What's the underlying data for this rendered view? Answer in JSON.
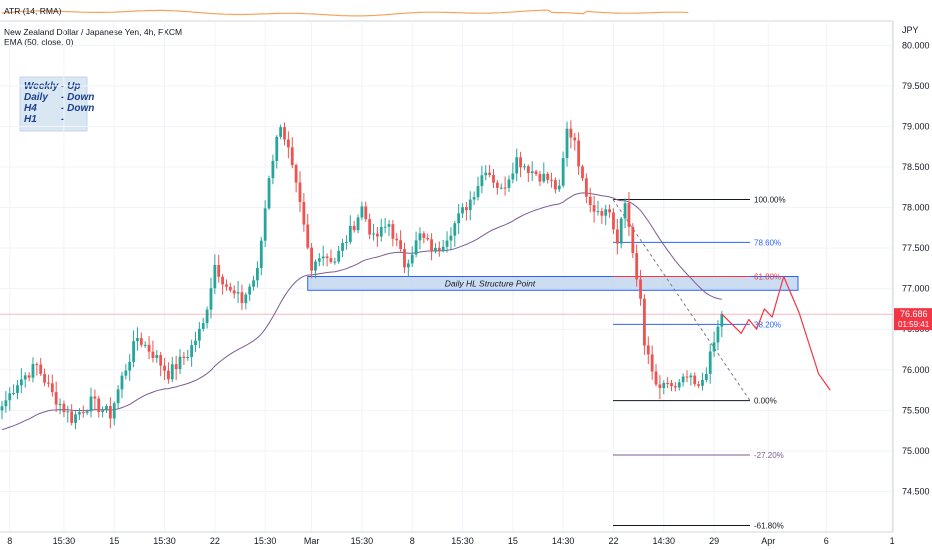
{
  "indicator_pane": {
    "label": "ATR (14, RMA)"
  },
  "legend": {
    "symbol_line": "New Zealand Dollar / Japanese Yen, 4h, FXCM",
    "ema_line": "EMA (50, close, 0)"
  },
  "currency_tag": "JPY",
  "bias_box": {
    "rows": [
      {
        "tf": "Weekly",
        "dir": "- Up"
      },
      {
        "tf": "Daily",
        "dir": "- Down"
      },
      {
        "tf": "H4",
        "dir": "- Down"
      },
      {
        "tf": "H1",
        "dir": "-"
      }
    ]
  },
  "zone": {
    "label": "Daily HL Structure Point",
    "color": "#2962ff"
  },
  "price_tag": {
    "price": "76.686",
    "countdown": "01:59:41",
    "color": "#f23645"
  },
  "colors": {
    "up": "#26a69a",
    "down": "#ef5350",
    "ema": "#7b5c96",
    "atr": "#f7a35c",
    "projection": "#f23645"
  },
  "chart_data": {
    "type": "candlestick",
    "instrument": "New Zealand Dollar / Japanese Yen",
    "timeframe": "4h",
    "ylim": [
      74.0,
      80.3
    ],
    "y_ticks": [
      "80.000",
      "79.500",
      "79.000",
      "78.500",
      "78.000",
      "77.500",
      "77.000",
      "76.500",
      "76.000",
      "75.500",
      "75.000",
      "74.500"
    ],
    "y_tick_values": [
      80.0,
      79.5,
      79.0,
      78.5,
      78.0,
      77.5,
      77.0,
      76.5,
      76.0,
      75.5,
      75.0,
      74.5
    ],
    "x_ticks": [
      {
        "label": "8",
        "bar": 2
      },
      {
        "label": "15:30",
        "bar": 16
      },
      {
        "label": "15",
        "bar": 29
      },
      {
        "label": "15:30",
        "bar": 42
      },
      {
        "label": "22",
        "bar": 55
      },
      {
        "label": "15:30",
        "bar": 68
      },
      {
        "label": "Mar",
        "bar": 80
      },
      {
        "label": "15:30",
        "bar": 93
      },
      {
        "label": "8",
        "bar": 106
      },
      {
        "label": "15:30",
        "bar": 119
      },
      {
        "label": "15",
        "bar": 132
      },
      {
        "label": "14:30",
        "bar": 145
      },
      {
        "label": "22",
        "bar": 158
      },
      {
        "label": "14:30",
        "bar": 171
      },
      {
        "label": "29",
        "bar": 184
      },
      {
        "label": "Apr",
        "bar": 198
      },
      {
        "label": "6",
        "bar": 213
      },
      {
        "label": "1",
        "bar": 230
      }
    ],
    "waypoints": [
      [
        0,
        75.55
      ],
      [
        4,
        75.85
      ],
      [
        9,
        76.05
      ],
      [
        13,
        75.7
      ],
      [
        18,
        75.4
      ],
      [
        23,
        75.6
      ],
      [
        28,
        75.45
      ],
      [
        31,
        75.9
      ],
      [
        35,
        76.4
      ],
      [
        39,
        76.2
      ],
      [
        43,
        75.95
      ],
      [
        48,
        76.2
      ],
      [
        52,
        76.55
      ],
      [
        55,
        77.3
      ],
      [
        59,
        76.95
      ],
      [
        62,
        76.85
      ],
      [
        66,
        77.2
      ],
      [
        69,
        78.4
      ],
      [
        72,
        79.05
      ],
      [
        74,
        78.7
      ],
      [
        77,
        78.0
      ],
      [
        80,
        77.2
      ],
      [
        82,
        77.45
      ],
      [
        86,
        77.35
      ],
      [
        90,
        77.7
      ],
      [
        93,
        78.0
      ],
      [
        96,
        77.6
      ],
      [
        100,
        77.8
      ],
      [
        104,
        77.3
      ],
      [
        108,
        77.65
      ],
      [
        112,
        77.45
      ],
      [
        117,
        77.8
      ],
      [
        121,
        78.1
      ],
      [
        125,
        78.5
      ],
      [
        129,
        78.2
      ],
      [
        133,
        78.6
      ],
      [
        137,
        78.45
      ],
      [
        141,
        78.35
      ],
      [
        144,
        78.2
      ],
      [
        146,
        78.95
      ],
      [
        148,
        78.85
      ],
      [
        150,
        78.3
      ],
      [
        153,
        78.0
      ],
      [
        157,
        77.95
      ],
      [
        159,
        77.55
      ],
      [
        161,
        78.05
      ],
      [
        163,
        77.5
      ],
      [
        164,
        77.05
      ],
      [
        165,
        76.85
      ],
      [
        166,
        76.3
      ],
      [
        168,
        75.95
      ],
      [
        170,
        75.7
      ],
      [
        172,
        75.85
      ],
      [
        174,
        75.75
      ],
      [
        177,
        75.9
      ],
      [
        180,
        75.75
      ],
      [
        183,
        76.15
      ],
      [
        186,
        76.686
      ]
    ],
    "ema_period": 50,
    "fibonacci": {
      "high": 78.1,
      "low": 75.62,
      "levels": [
        {
          "label": "100.00%",
          "price": 78.1,
          "color": "#131722"
        },
        {
          "label": "78.60%",
          "price": 77.57,
          "color": "#2962ff"
        },
        {
          "label": "61.80%",
          "price": 77.15,
          "color": "#f23645"
        },
        {
          "label": "38.20%",
          "price": 76.56,
          "color": "#2962ff"
        },
        {
          "label": "0.00%",
          "price": 75.62,
          "color": "#131722"
        },
        {
          "label": "-27.20%",
          "price": 74.95,
          "color": "#7b5c96"
        },
        {
          "label": "-61.80%",
          "price": 74.08,
          "color": "#131722"
        }
      ]
    },
    "zone": {
      "top": 77.15,
      "bottom": 76.98
    },
    "current_price": 76.686,
    "projection": [
      [
        186,
        76.686
      ],
      [
        191,
        76.45
      ],
      [
        193,
        76.62
      ],
      [
        195,
        76.5
      ],
      [
        197,
        76.75
      ],
      [
        199,
        76.65
      ],
      [
        202,
        77.15
      ],
      [
        206,
        76.7
      ],
      [
        211,
        75.95
      ],
      [
        214,
        75.75
      ]
    ]
  }
}
